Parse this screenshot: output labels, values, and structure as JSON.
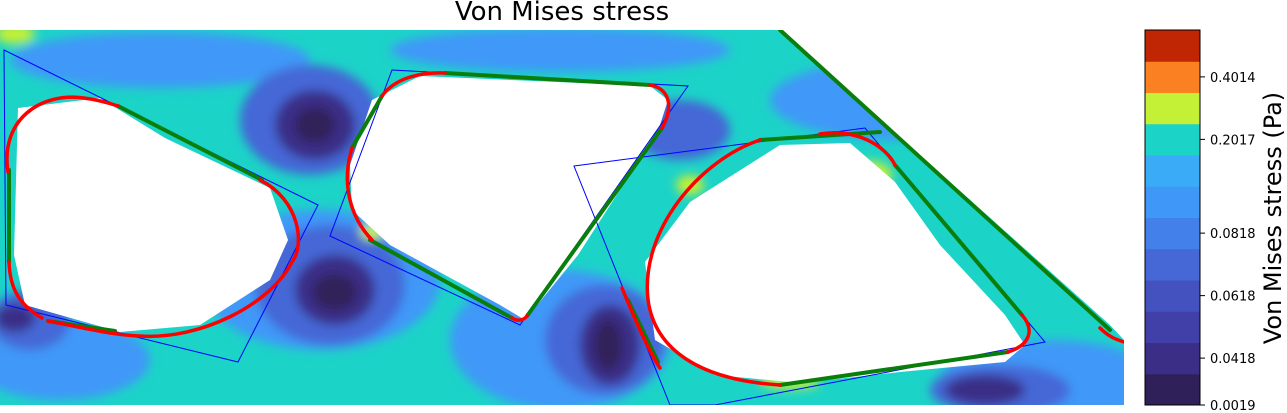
{
  "chart_data": {
    "type": "heatmap",
    "title": "Von Mises stress",
    "colorbar": {
      "label": "Von Mises stress (Pa)",
      "min": 0.0019,
      "max": 0.5,
      "tick_labels": [
        "0.0019",
        "0.0418",
        "0.0618",
        "0.0818",
        "0.2017",
        "0.4014"
      ],
      "tick_levels": [
        0,
        1.5,
        3.5,
        5.5,
        8.5,
        10.5
      ],
      "band_colors": [
        "#30205a",
        "#3a2e87",
        "#4040a8",
        "#4452c0",
        "#4568d6",
        "#4480ea",
        "#3f98f8",
        "#3aabf6",
        "#1cd3c8",
        "#c4f035",
        "#fb8022",
        "#c02604"
      ]
    },
    "domain": {
      "background_color": "#1cd3c8",
      "hole_count": 3,
      "boundary_colors": {
        "straight_segments": "#0a7e0a",
        "fillets": "#ff0000",
        "guide_lines": "#0000ff"
      }
    }
  }
}
